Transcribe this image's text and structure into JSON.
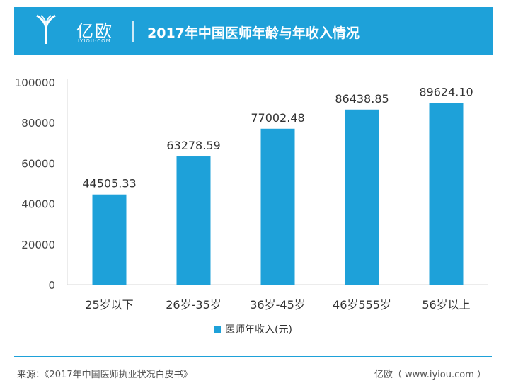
{
  "header": {
    "logo_text": "亿欧",
    "logo_sub": "IYIOU·COM",
    "title": "2017年中国医师年龄与年收入情况"
  },
  "colors": {
    "bar": "#1ea1d9",
    "header": "#1ea1d9"
  },
  "chart_data": {
    "type": "bar",
    "categories": [
      "25岁以下",
      "26岁-35岁",
      "36岁-45岁",
      "46岁555岁",
      "56岁以上"
    ],
    "series": [
      {
        "name": "医师年收入(元)",
        "values": [
          44505.33,
          63278.59,
          77002.48,
          86438.85,
          89624.1
        ]
      }
    ],
    "value_labels": [
      "44505.33",
      "63278.59",
      "77002.48",
      "86438.85",
      "89624.10"
    ],
    "y_ticks": [
      "0",
      "20000",
      "40000",
      "60000",
      "80000",
      "100000"
    ],
    "ylim": [
      0,
      100000
    ],
    "grid": false,
    "legend_position": "bottom"
  },
  "legend": {
    "label": "医师年收入(元)"
  },
  "footer": {
    "source": "来源：《2017年中国医师执业状况白皮书》",
    "credit": "亿欧（ www.iyiou.com ）"
  }
}
